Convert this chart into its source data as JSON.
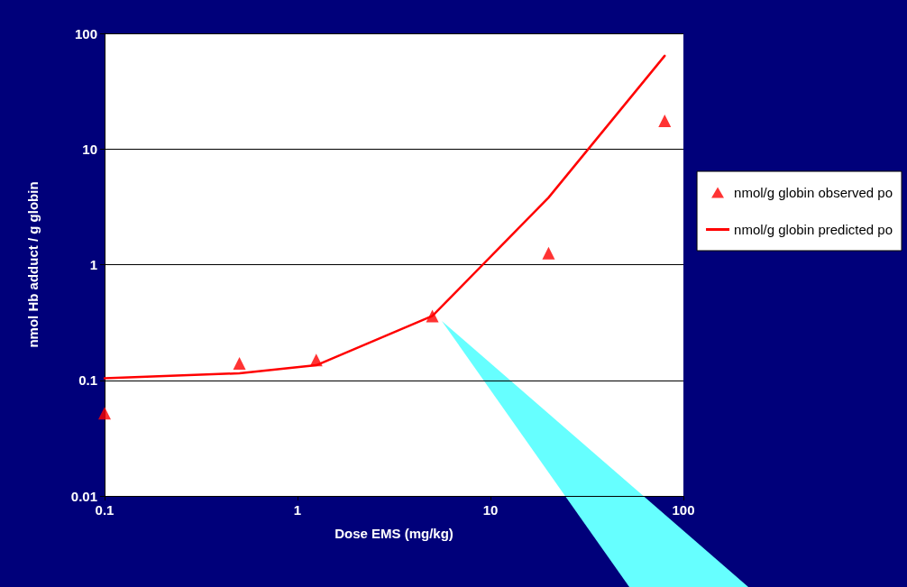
{
  "chart_data": {
    "type": "line",
    "xlabel": "Dose EMS (mg/kg)",
    "ylabel": "nmol Hb adduct / g globin",
    "log": "xy",
    "grid": "y",
    "legend": "right",
    "xlim": [
      0.1,
      100
    ],
    "xticks": [
      0.1,
      1,
      10,
      100
    ],
    "ylim": [
      0.01,
      100
    ],
    "yticks": [
      0.01,
      0.1,
      1,
      10,
      100
    ],
    "series": [
      {
        "name": "nmol/g globin observed po",
        "type": "scatter",
        "marker": "triangle",
        "color": "#ff0000",
        "x": [
          0.1,
          0.5,
          1.25,
          5,
          20,
          80
        ],
        "values": [
          0.052,
          0.14,
          0.15,
          0.36,
          1.26,
          17.5
        ]
      },
      {
        "name": "nmol/g globin predicted po",
        "marker": "none",
        "line_style": "solid",
        "color": "#ff0000",
        "x": [
          0.1,
          0.5,
          1.25,
          5,
          20,
          80
        ],
        "values": [
          0.104,
          0.115,
          0.135,
          0.36,
          3.8,
          64
        ]
      }
    ]
  }
}
